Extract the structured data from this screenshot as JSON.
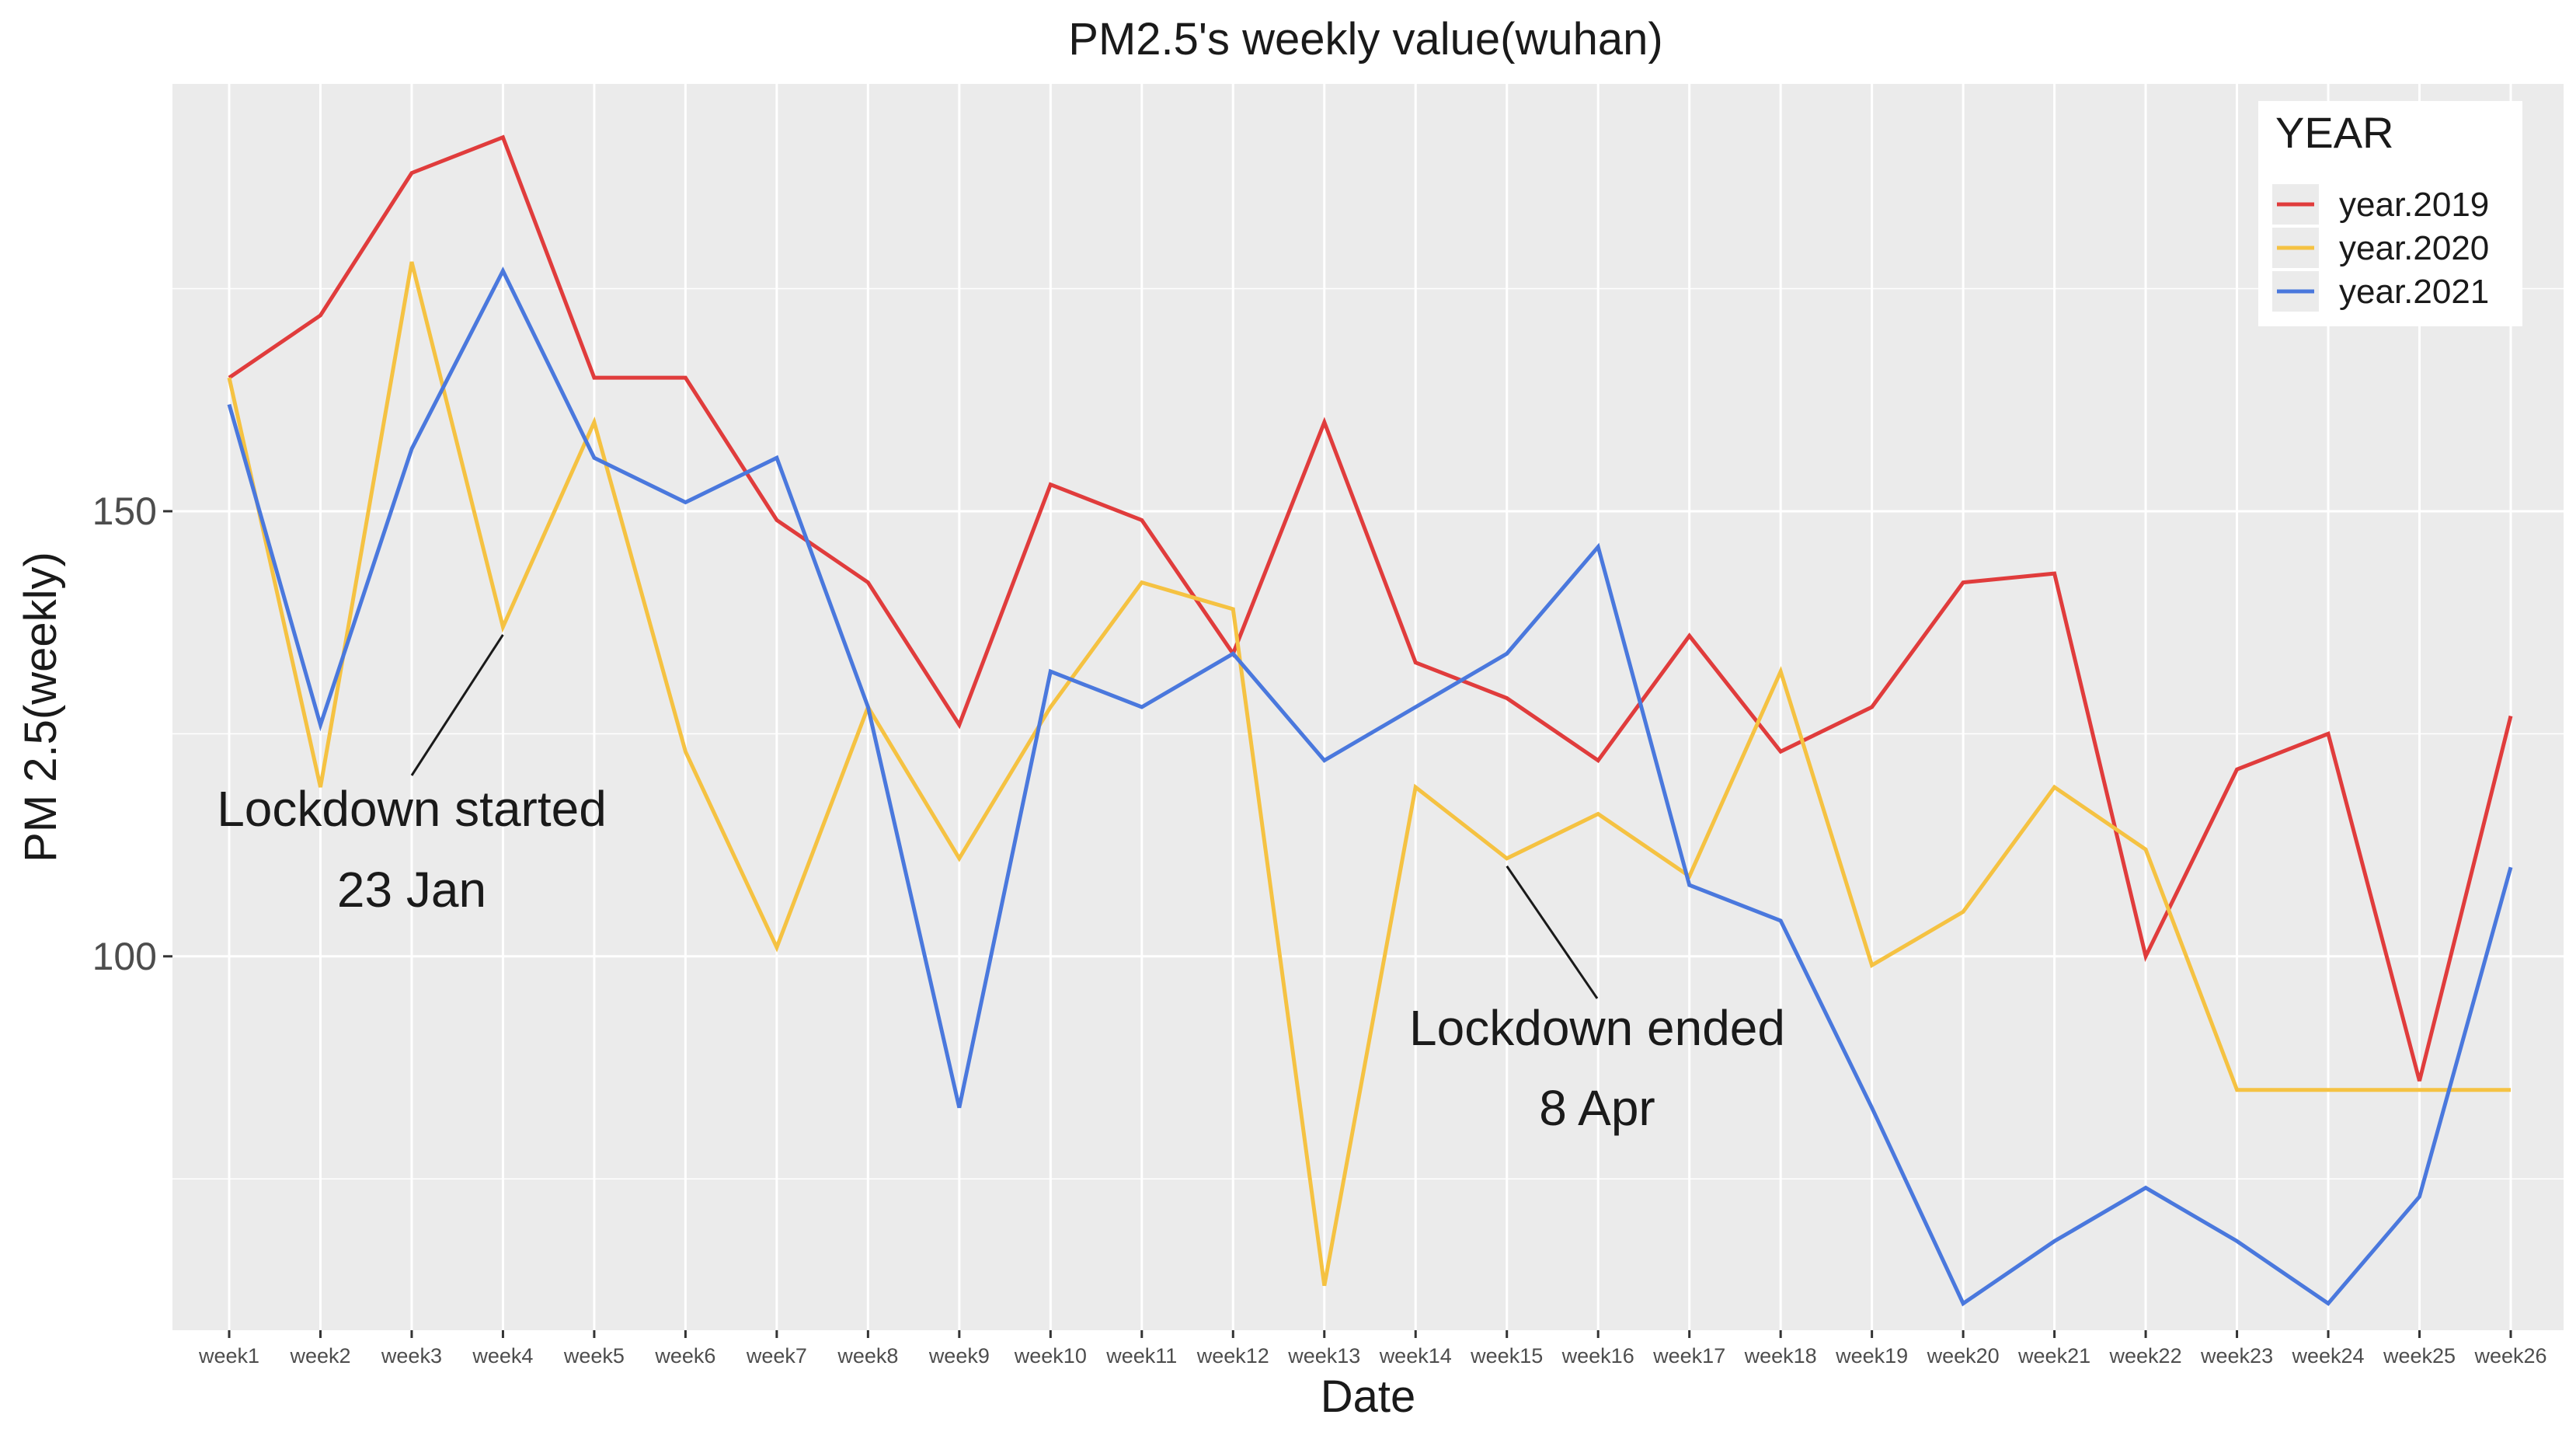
{
  "chart_data": {
    "type": "line",
    "title": "PM2.5's weekly value(wuhan)",
    "xlabel": "Date",
    "ylabel": "PM 2.5(weekly)",
    "ylim": [
      58,
      198
    ],
    "yticks": [
      100,
      150
    ],
    "grid": true,
    "legend_title": "YEAR",
    "legend_position": "top-right",
    "categories": [
      "week1",
      "week2",
      "week3",
      "week4",
      "week5",
      "week6",
      "week7",
      "week8",
      "week9",
      "week10",
      "week11",
      "week12",
      "week13",
      "week14",
      "week15",
      "week16",
      "week17",
      "week18",
      "week19",
      "week20",
      "week21",
      "week22",
      "week23",
      "week24",
      "week25",
      "week26"
    ],
    "series": [
      {
        "name": "year.2019",
        "color": "#e03c3c",
        "values": [
          165,
          172,
          188,
          192,
          165,
          165,
          149,
          142,
          126,
          153,
          149,
          134,
          160,
          133,
          129,
          122,
          136,
          123,
          128,
          142,
          143,
          100,
          121,
          125,
          86,
          127
        ]
      },
      {
        "name": "year.2020",
        "color": "#f5c242",
        "values": [
          165,
          119,
          178,
          137,
          160,
          123,
          101,
          128,
          111,
          128,
          142,
          139,
          63,
          119,
          111,
          116,
          109,
          132,
          99,
          105,
          119,
          112,
          85,
          85,
          85,
          85
        ]
      },
      {
        "name": "year.2021",
        "color": "#4a78dd",
        "values": [
          162,
          126,
          157,
          177,
          156,
          151,
          156,
          128,
          83,
          132,
          128,
          134,
          122,
          128,
          134,
          146,
          108,
          104,
          83,
          61,
          68,
          74,
          68,
          61,
          73,
          110
        ]
      }
    ],
    "annotations": [
      {
        "lines": [
          "Lockdown started",
          "23 Jan"
        ],
        "target_week": "week4",
        "target_value": 137
      },
      {
        "lines": [
          "Lockdown ended",
          "8 Apr"
        ],
        "target_week": "week15",
        "target_value": 111
      }
    ]
  }
}
